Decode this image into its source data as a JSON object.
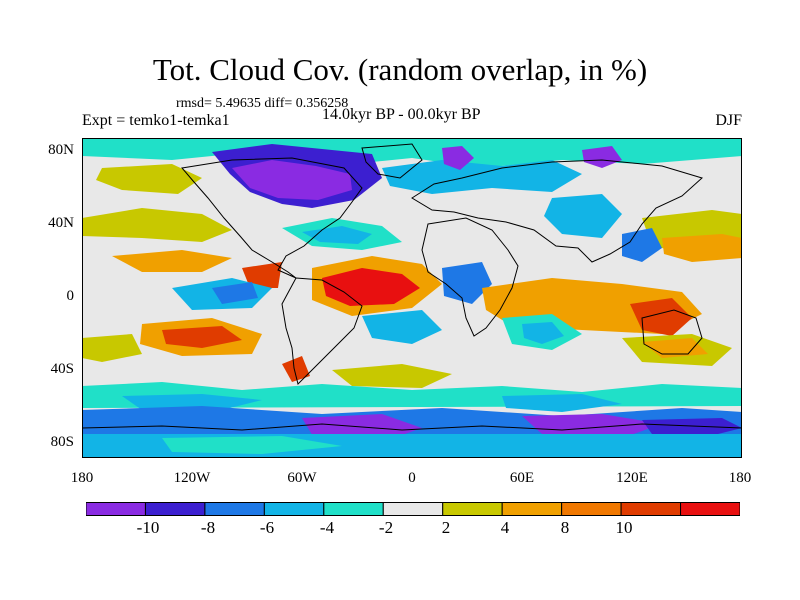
{
  "title": "Tot. Cloud Cov. (random overlap, in %)",
  "stats": "rmsd= 5.49635 diff= 0.356258",
  "experiment": "Expt = temko1-temka1",
  "period": "14.0kyr BP - 00.0kyr BP",
  "season": "DJF",
  "lat_labels": [
    "80N",
    "40N",
    "0",
    "40S",
    "80S"
  ],
  "lon_labels": [
    "180",
    "120W",
    "60W",
    "0",
    "60E",
    "120E",
    "180"
  ],
  "colorbar": {
    "colors": [
      "#8a2be2",
      "#3c1fd0",
      "#1e78e6",
      "#12b4e6",
      "#20e0c8",
      "#e8e8e8",
      "#c8c800",
      "#f0a000",
      "#f07800",
      "#e03c00",
      "#e81010"
    ],
    "labels": [
      "-10",
      "-8",
      "-6",
      "-4",
      "-2",
      "2",
      "4",
      "8",
      "10"
    ]
  }
}
